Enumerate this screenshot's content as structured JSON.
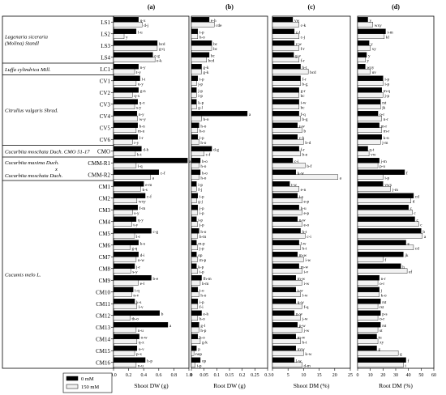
{
  "chart_data": {
    "type": "bar",
    "orientation": "horizontal",
    "legend": {
      "placement": "bottom-left",
      "entries": [
        {
          "label": "0 mM",
          "color": "#000000"
        },
        {
          "label": "150 mM",
          "color": "#f2f2f2"
        }
      ]
    },
    "categories": [
      "LS1",
      "LS2",
      "LS3",
      "LS4",
      "LC1",
      "CV1",
      "CV2",
      "CV3",
      "CV4",
      "CV5",
      "CV6",
      "CMO",
      "CMM-R1",
      "CMM-R2",
      "CM1",
      "CM2",
      "CM3",
      "CM4",
      "CM5",
      "CM6",
      "CM7",
      "CM8",
      "CM9",
      "CM10",
      "CM11",
      "CM12",
      "CM13",
      "CM14",
      "CM15",
      "CM16"
    ],
    "species_groups": [
      {
        "lines": [
          "Lagenaria siceraria",
          "(Molina) Standl"
        ],
        "start": 0,
        "end": 3
      },
      {
        "lines": [
          "Luffa cylindrica Mill."
        ],
        "start": 4,
        "end": 4
      },
      {
        "lines": [
          "Citrullus vulgaris Shrad."
        ],
        "start": 5,
        "end": 10
      },
      {
        "lines": [
          "Cucurbita moschata Duch. CMO 51-17"
        ],
        "start": 11,
        "end": 11
      },
      {
        "lines": [
          "Cucurbita maxima Duch.",
          "x",
          "Cucurbita moschata Duch."
        ],
        "start": 12,
        "end": 13
      },
      {
        "lines": [
          "Cucumis melo L."
        ],
        "start": 14,
        "end": 29
      }
    ],
    "panels": [
      {
        "label": "(a)",
        "xlabel": "Shoot DW (g)",
        "xlim": [
          0,
          1
        ],
        "ticks": [
          "0.0",
          "0.2",
          "0.4",
          "0.6",
          "0.8",
          "1.0"
        ],
        "tick_values": [
          0,
          0.2,
          0.4,
          0.6,
          0.8,
          1.0
        ],
        "series": [
          {
            "name": "0 mM",
            "values": [
              0.33,
              0.3,
              0.58,
              0.52,
              0.33,
              0.35,
              0.33,
              0.32,
              0.31,
              0.32,
              0.32,
              0.37,
              0.98,
              0.6,
              0.4,
              0.42,
              0.32,
              0.3,
              0.5,
              0.33,
              0.33,
              0.28,
              0.5,
              0.26,
              0.28,
              0.61,
              0.72,
              0.34,
              0.31,
              0.42
            ]
          },
          {
            "name": "150 mM",
            "values": [
              0.38,
              0.14,
              0.58,
              0.55,
              0.28,
              0.3,
              0.25,
              0.28,
              0.32,
              0.3,
              0.25,
              0.29,
              0.3,
              0.49,
              0.36,
              0.31,
              0.25,
              0.24,
              0.28,
              0.22,
              0.3,
              0.23,
              0.33,
              0.24,
              0.31,
              0.22,
              0.3,
              0.31,
              0.28,
              0.3
            ]
          }
        ],
        "annotations": [
          [
            "q-x",
            "d-j"
          ],
          [
            "l-u",
            "y"
          ],
          [
            "bcd",
            "g-q"
          ],
          [
            "c-g",
            "e-k"
          ],
          [
            "n-y",
            "t-y"
          ],
          [
            "l-t",
            "u-y"
          ],
          [
            "g-n",
            "q-x"
          ],
          [
            "q-x",
            "s-y"
          ],
          [
            "n-y",
            "w-y"
          ],
          [
            "h-n",
            "m-u"
          ],
          [
            "l-r",
            "r-y"
          ],
          [
            "d-h",
            "k-t"
          ],
          [
            "a",
            "l-q"
          ],
          [
            "c-f",
            "a"
          ],
          [
            "e-m",
            "k-s"
          ],
          [
            "c-f",
            "wxy"
          ],
          [
            "f-m",
            "s-y"
          ],
          [
            "q-y",
            "t-y"
          ],
          [
            "c-g",
            "l-r"
          ],
          [
            "k-s",
            "g-q"
          ],
          [
            "d-i",
            "o-w"
          ],
          [
            "j-r",
            "s-y"
          ],
          [
            "b-e",
            "e-l"
          ],
          [
            "i-q",
            "n-v"
          ],
          [
            "k-s",
            "l-v"
          ],
          [
            "b",
            "th-o"
          ],
          [
            "a",
            "n-u"
          ],
          [
            "o-w",
            "q-x"
          ],
          [
            "o-v",
            "p-x"
          ],
          [
            "h-p",
            "n-u"
          ]
        ]
      },
      {
        "label": "(b)",
        "xlabel": "Root DW (g)",
        "xlim": [
          0,
          0.3
        ],
        "ticks": [
          "0",
          "0.05",
          "0.1",
          "0.15",
          "0.2",
          "0.25",
          "0.3"
        ],
        "tick_values": [
          0,
          0.05,
          0.1,
          0.15,
          0.2,
          0.25,
          0.3
        ],
        "series": [
          {
            "name": "0 mM",
            "values": [
              0.07,
              0.025,
              0.08,
              0.07,
              0.04,
              0.025,
              0.02,
              0.02,
              0.22,
              0.03,
              0.025,
              0.08,
              0.035,
              0.035,
              0.02,
              0.025,
              0.025,
              0.02,
              0.03,
              0.02,
              0.02,
              0.02,
              0.04,
              0.025,
              0.025,
              0.04,
              0.03,
              0.025,
              0.02,
              0.035
            ]
          },
          {
            "name": "150 mM",
            "values": [
              0.09,
              0.025,
              0.08,
              0.06,
              0.04,
              0.02,
              0.02,
              0.02,
              0.04,
              0.025,
              0.03,
              0.05,
              0.03,
              0.03,
              0.02,
              0.02,
              0.025,
              0.025,
              0.025,
              0.025,
              0.025,
              0.025,
              0.035,
              0.03,
              0.025,
              0.025,
              0.03,
              0.035,
              0.01,
              0.015
            ]
          }
        ],
        "annotations": [
          [
            "e-h",
            "cde"
          ],
          [
            "i-p",
            "h-o"
          ],
          [
            "bc",
            "bc"
          ],
          [
            "bc",
            "bcd"
          ],
          [
            "g-k",
            "g-k"
          ],
          [
            "i-p",
            "j-p"
          ],
          [
            "j-p",
            "i-p"
          ],
          [
            "k-p",
            "g-l"
          ],
          [
            "a",
            "h-o"
          ],
          [
            "h-o",
            "h-o"
          ],
          [
            "i-p",
            "h-o"
          ],
          [
            "d-g",
            "c-f"
          ],
          [
            "h-o",
            "h-o"
          ],
          [
            "h-o",
            "h-o"
          ],
          [
            "i-p",
            "f-j"
          ],
          [
            "i-p",
            "g-j"
          ],
          [
            "j-p",
            "i-p"
          ],
          [
            "i-p",
            "j-p"
          ],
          [
            "h-o",
            "h-m"
          ],
          [
            "m-p",
            "j-p"
          ],
          [
            "op",
            "m-p"
          ],
          [
            "k-p",
            "i-p"
          ],
          [
            "fh-m",
            "h-m"
          ],
          [
            "i-o",
            "h-o"
          ],
          [
            "i-p",
            "f-i"
          ],
          [
            "e-h",
            "h-o"
          ],
          [
            "g-l",
            "h-p"
          ],
          [
            "h-o",
            "g-k"
          ],
          [
            "p",
            "nop"
          ],
          [
            "op",
            "i-p"
          ]
        ]
      },
      {
        "label": "(c)",
        "xlabel": "Shoot DM (%)",
        "xlim": [
          0,
          25
        ],
        "ticks": [
          "0",
          "5",
          "10",
          "15",
          "20",
          "25"
        ],
        "tick_values": [
          0,
          5,
          10,
          15,
          20,
          25
        ],
        "series": [
          {
            "name": "0 mM",
            "values": [
              6.5,
              7.0,
              7.0,
              6.8,
              9.0,
              9.0,
              8.5,
              8.5,
              8.5,
              8.0,
              8.0,
              8.5,
              6.5,
              7.5,
              5.5,
              8.0,
              8.5,
              8.0,
              9.0,
              8.5,
              8.0,
              8.5,
              7.5,
              7.5,
              7.5,
              7.0,
              8.0,
              7.5,
              7.5,
              7.0
            ]
          },
          {
            "name": "150 mM",
            "values": [
              8.5,
              8.5,
              8.5,
              8.5,
              11.5,
              9.0,
              8.5,
              8.5,
              9.0,
              9.5,
              10.0,
              9.0,
              10.5,
              21.0,
              8.5,
              9.5,
              9.5,
              9.5,
              10.5,
              9.0,
              10.0,
              9.5,
              9.5,
              9.0,
              9.5,
              9.0,
              9.5,
              9.0,
              10.0,
              9.5
            ]
          }
        ],
        "annotations": [
          [
            "vw",
            "c-k"
          ],
          [
            "c-l",
            "c-j"
          ],
          [
            "r-w",
            "f-r"
          ],
          [
            "g-v",
            "f-r"
          ],
          [
            "h-t",
            "bcd"
          ],
          [
            "f-r",
            "b-g"
          ],
          [
            "g-r",
            "bc"
          ],
          [
            "i-w",
            "bc"
          ],
          [
            "f-q",
            "b-g"
          ],
          [
            "r-w",
            "b"
          ],
          [
            "c-h",
            "b-d"
          ],
          [
            "f-r",
            "b-e"
          ],
          [
            "c-i",
            "b-f"
          ],
          [
            "k-w",
            "a"
          ],
          [
            "t-w",
            "e-n"
          ],
          [
            "i-s",
            "e-p"
          ],
          [
            "h-u",
            "e-p"
          ],
          [
            "o-w",
            "e-o"
          ],
          [
            "h-t",
            "c-i"
          ],
          [
            "l-w",
            "h-t"
          ],
          [
            "m-w",
            "i-w"
          ],
          [
            "m-w",
            "i-v"
          ],
          [
            "m-w",
            "i-w"
          ],
          [
            "t-w",
            "l-w"
          ],
          [
            "q-w",
            "f-q"
          ],
          [
            "n-w",
            "j-w"
          ],
          [
            "p-w",
            "j-w"
          ],
          [
            "m-w",
            "h-t"
          ],
          [
            "uvw",
            "k-w"
          ],
          [
            "l-w",
            "d-m"
          ]
        ]
      },
      {
        "label": "(d)",
        "xlabel": "Root DM (%)",
        "xlim": [
          0,
          60
        ],
        "ticks": [
          "0",
          "10",
          "20",
          "30",
          "40",
          "50",
          "60"
        ],
        "tick_values": [
          0,
          10,
          20,
          30,
          40,
          50,
          60
        ],
        "series": [
          {
            "name": "0 mM",
            "values": [
              8,
              22,
              9,
              7,
              6,
              20,
              19,
              18,
              16,
              17,
              19,
              8,
              17,
              37,
              20,
              44,
              40,
              45,
              50,
              38,
              36,
              34,
              17,
              17,
              18,
              18,
              18,
              15,
              15,
              38
            ]
          },
          {
            "name": "150 mM",
            "values": [
              12,
              21,
              10,
              6,
              10,
              20,
              20,
              18,
              19,
              19,
              18,
              9,
              16,
              20,
              26,
              42,
              43,
              48,
              51,
              44,
              20,
              39,
              16,
              17,
              16,
              16,
              16,
              16,
              32,
              36
            ]
          }
        ],
        "annotations": [
          [
            "y",
            "wxy"
          ],
          [
            "i-m",
            "kl"
          ],
          [
            "y",
            "xy"
          ],
          [
            "y",
            "y"
          ],
          [
            "wxy",
            "uv"
          ],
          [
            "i-p",
            "i-p"
          ],
          [
            "m-q",
            "j-p"
          ],
          [
            "rst",
            "jk"
          ],
          [
            "o-r",
            "n-r"
          ],
          [
            "m-r",
            "m-r"
          ],
          [
            "k-n",
            "j-m"
          ],
          [
            "q-t",
            "vw"
          ],
          [
            "j-m",
            "p-u"
          ],
          [
            "f",
            "i-p"
          ],
          [
            "vwx",
            "j-m"
          ],
          [
            "cd",
            "d"
          ],
          [
            "c",
            "c"
          ],
          [
            "c",
            "c"
          ],
          [
            "b",
            "a"
          ],
          [
            "e",
            "cd"
          ],
          [
            "jk",
            "f"
          ],
          [
            "h",
            "ef"
          ],
          [
            "n-r",
            "o-r"
          ],
          [
            "j",
            "k-o"
          ],
          [
            "rst",
            "rst"
          ],
          [
            "p-s",
            "o-r"
          ],
          [
            "rst",
            "st"
          ],
          [
            "tu",
            "xy"
          ],
          [
            "g",
            "g"
          ],
          [
            "f",
            "i"
          ]
        ]
      }
    ]
  }
}
